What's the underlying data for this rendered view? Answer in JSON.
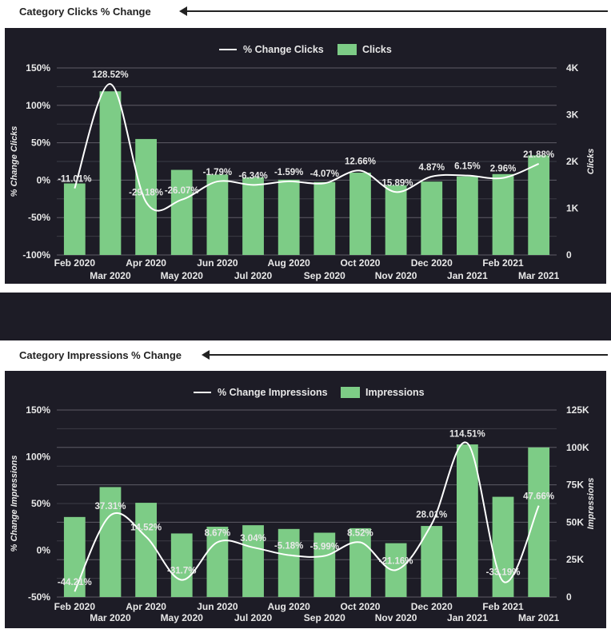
{
  "charts": [
    {
      "title": "Category Clicks % Change",
      "legend_line_label": "% Change Clicks",
      "legend_bar_label": "Clicks",
      "ylabel_left": "% Change Clicks",
      "ylabel_right": "Clicks",
      "left_ticks": [
        "150%",
        "100%",
        "50%",
        "0%",
        "-50%",
        "-100%"
      ],
      "right_ticks": [
        "4K",
        "3K",
        "2K",
        "1K",
        "0"
      ]
    },
    {
      "title": "Category Impressions % Change",
      "legend_line_label": "% Change Impressions",
      "legend_bar_label": "Impressions",
      "ylabel_left": "% Change Impressions",
      "ylabel_right": "Impressions",
      "left_ticks": [
        "150%",
        "100%",
        "50%",
        "0%",
        "-50%"
      ],
      "right_ticks": [
        "125K",
        "100K",
        "75K",
        "50K",
        "25K",
        "0"
      ]
    }
  ],
  "chart_data": [
    {
      "type": "bar",
      "title": "Category Clicks % Change",
      "categories": [
        "Feb 2020",
        "Mar 2020",
        "Apr 2020",
        "May 2020",
        "Jun 2020",
        "Jul 2020",
        "Aug 2020",
        "Sep 2020",
        "Oct 2020",
        "Nov 2020",
        "Dec 2020",
        "Jan 2021",
        "Feb 2021",
        "Mar 2021"
      ],
      "series": [
        {
          "name": "Clicks",
          "axis": "right",
          "kind": "bar",
          "values": [
            1530,
            3500,
            2480,
            1820,
            1720,
            1660,
            1610,
            1560,
            1760,
            1490,
            1570,
            1680,
            1730,
            2130
          ]
        },
        {
          "name": "% Change Clicks",
          "axis": "left",
          "kind": "line",
          "values": [
            -11.01,
            128.52,
            -29.18,
            -26.07,
            -1.79,
            -6.34,
            -1.59,
            -4.07,
            12.66,
            -15.89,
            4.87,
            6.15,
            2.96,
            21.88
          ],
          "labels": [
            "-11.01%",
            "128.52%",
            "-29.18%",
            "-26.07%",
            "-1.79%",
            "-6.34%",
            "-1.59%",
            "-4.07%",
            "12.66%",
            "-15.89%",
            "4.87%",
            "6.15%",
            "2.96%",
            "21.88%"
          ]
        }
      ],
      "ylim_left": [
        -100,
        150
      ],
      "ylim_right": [
        0,
        4000
      ],
      "legend_position": "top-center",
      "grid": true,
      "colors": {
        "bar": "#7dcc86",
        "line": "#ffffff",
        "background": "#1d1c26",
        "grid": "#55545c",
        "text": "#e8e8e8"
      }
    },
    {
      "type": "bar",
      "title": "Category Impressions % Change",
      "categories": [
        "Feb 2020",
        "Mar 2020",
        "Apr 2020",
        "May 2020",
        "Jun 2020",
        "Jul 2020",
        "Aug 2020",
        "Sep 2020",
        "Oct 2020",
        "Nov 2020",
        "Dec 2020",
        "Jan 2021",
        "Feb 2021",
        "Mar 2021"
      ],
      "series": [
        {
          "name": "Impressions",
          "axis": "right",
          "kind": "bar",
          "values": [
            53500,
            73500,
            63000,
            42500,
            47000,
            48000,
            45500,
            43000,
            46000,
            36000,
            47500,
            102000,
            67000,
            100000
          ]
        },
        {
          "name": "% Change Impressions",
          "axis": "left",
          "kind": "line",
          "values": [
            -44.21,
            37.31,
            14.52,
            -31.7,
            8.67,
            3.04,
            -5.18,
            -5.99,
            8.52,
            -21.16,
            28.01,
            114.51,
            -33.19,
            47.66
          ],
          "labels": [
            "-44.21%",
            "37.31%",
            "14.52%",
            "-31.7%",
            "8.67%",
            "3.04%",
            "-5.18%",
            "-5.99%",
            "8.52%",
            "-21.16%",
            "28.01%",
            "114.51%",
            "-33.19%",
            "47.66%"
          ]
        }
      ],
      "ylim_left": [
        -50,
        150
      ],
      "ylim_right": [
        0,
        125000
      ],
      "legend_position": "top-center",
      "grid": true,
      "colors": {
        "bar": "#7dcc86",
        "line": "#ffffff",
        "background": "#1d1c26",
        "grid": "#55545c",
        "text": "#e8e8e8"
      }
    }
  ]
}
